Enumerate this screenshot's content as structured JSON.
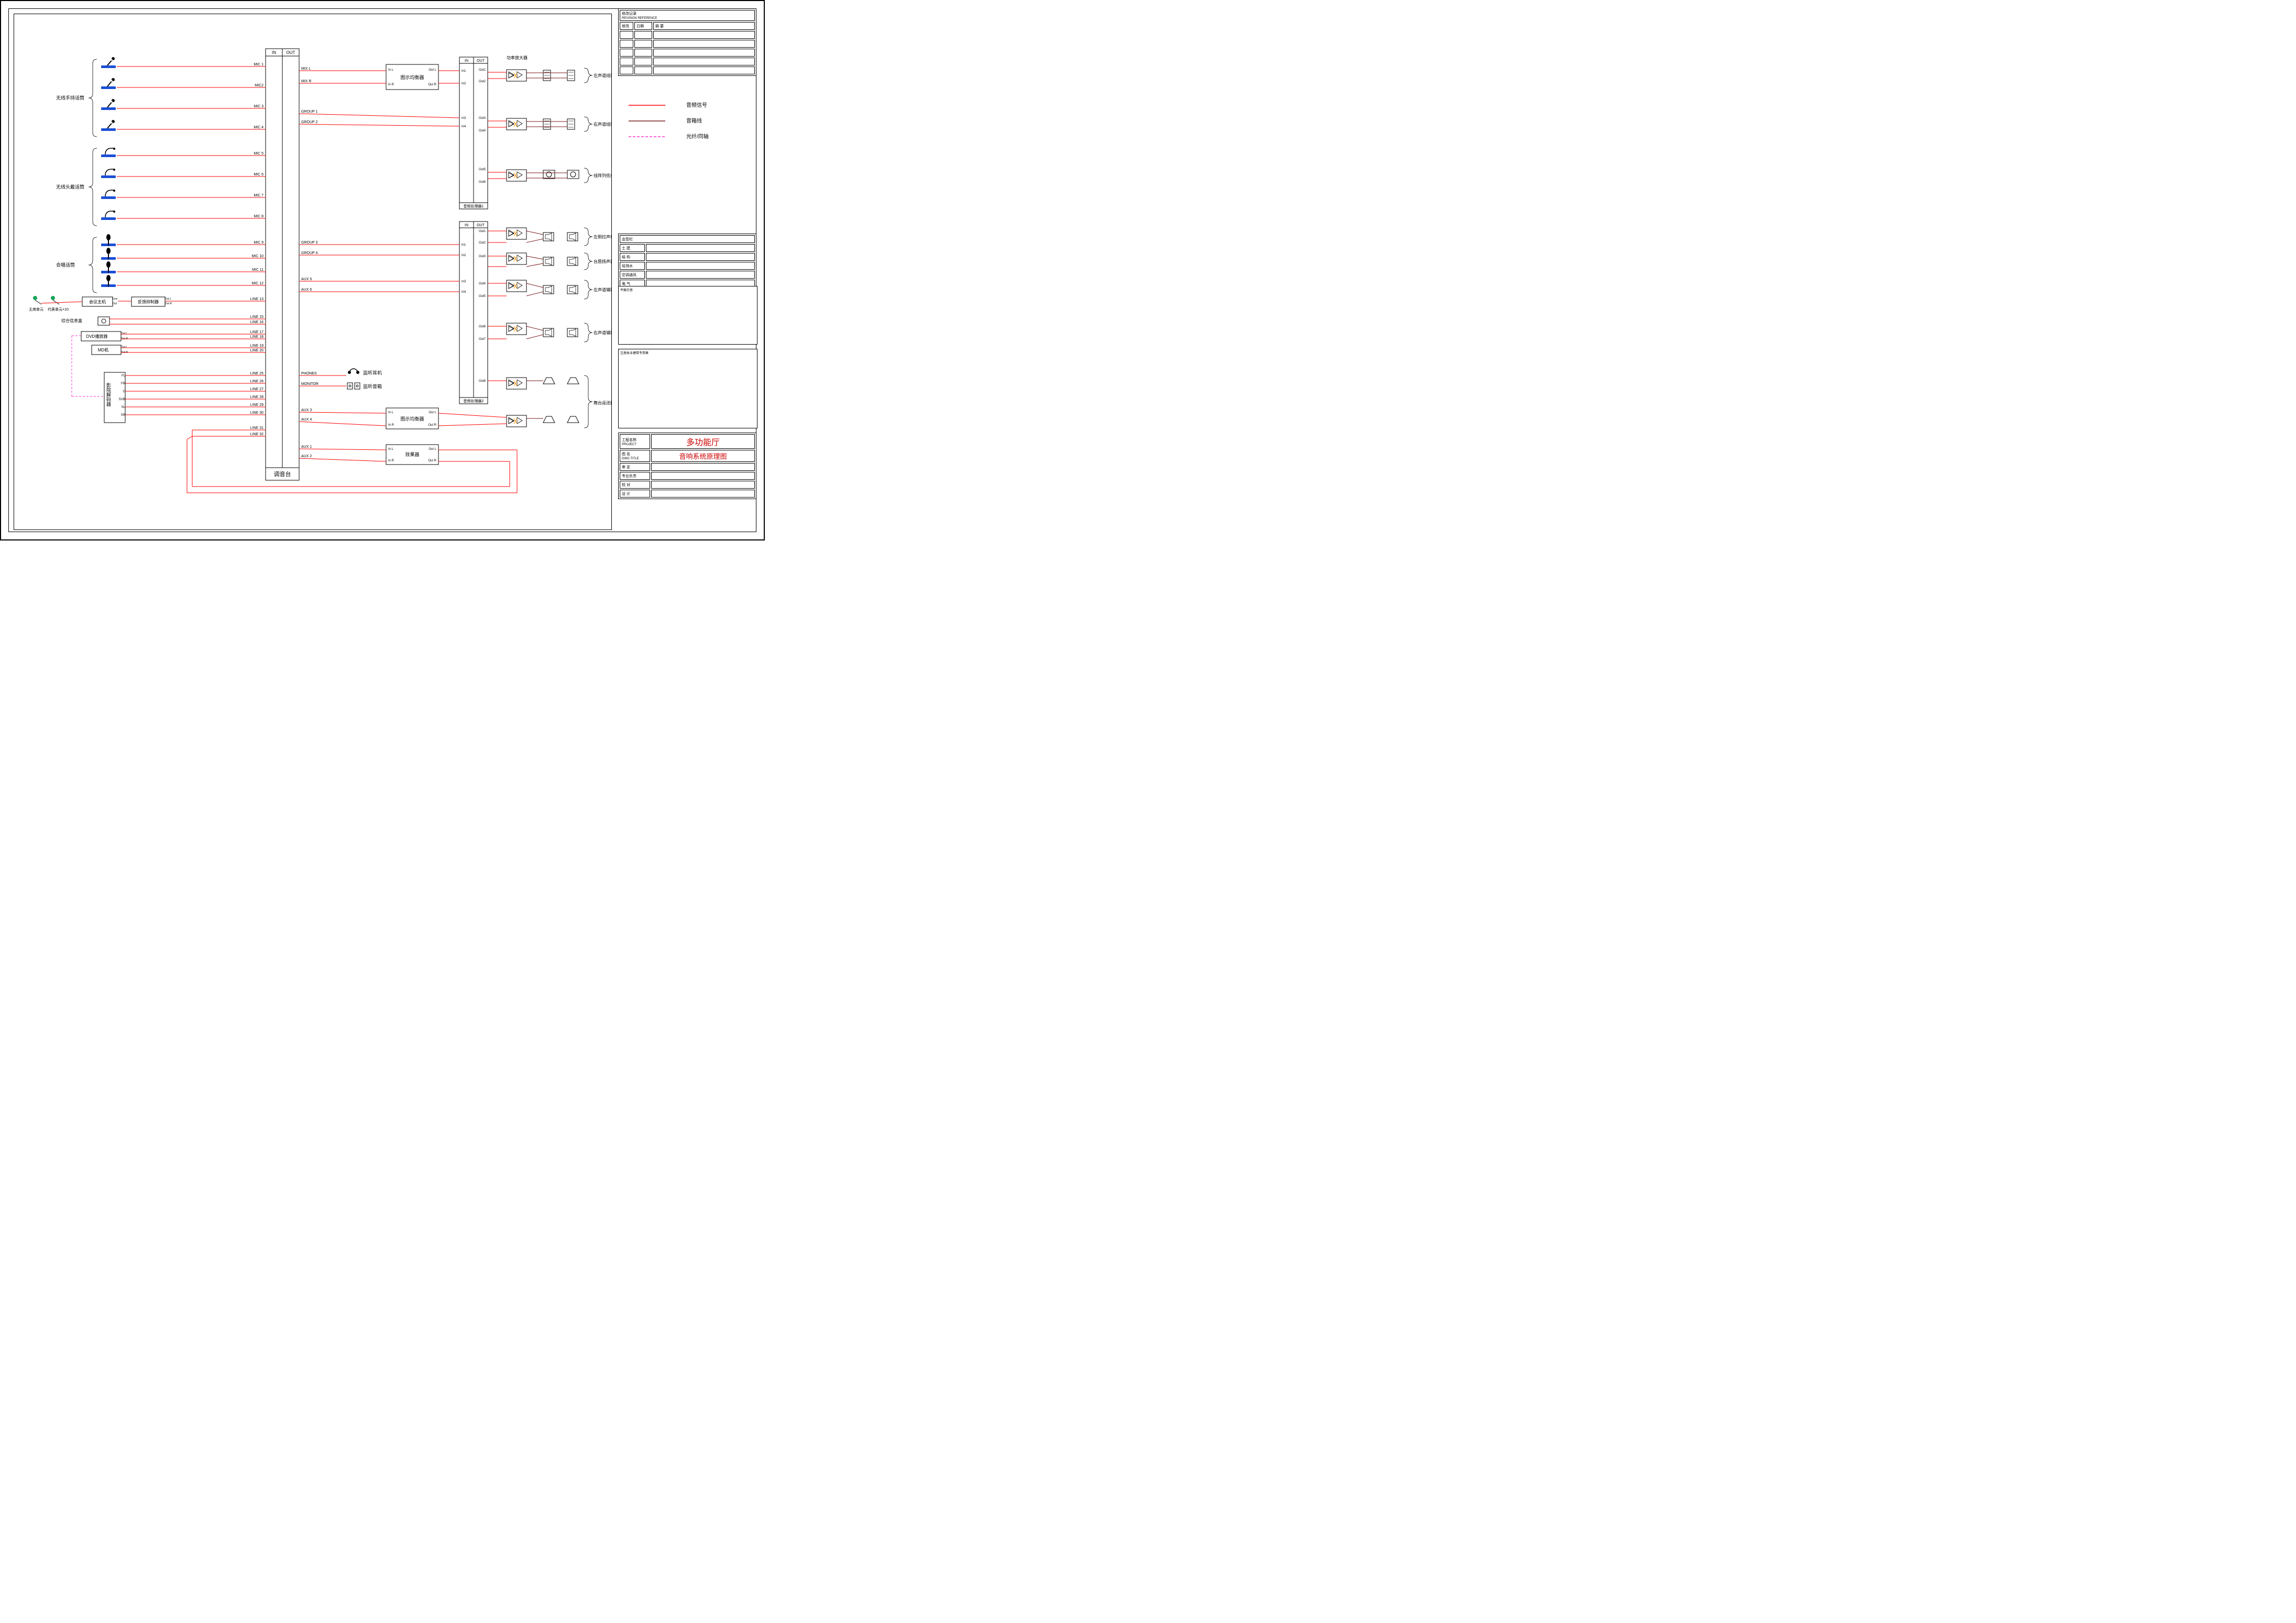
{
  "colors": {
    "signal": "#ff0000",
    "speaker": "#7a1a1a",
    "optical": "#ff33cc",
    "frame": "#000000",
    "iconBlue": "#1a4fd6",
    "iconGreen": "#18a558",
    "ampInternal": "#ff9900"
  },
  "legend": {
    "signal": "音频信号",
    "speaker": "音箱线",
    "optical": "光纤/同轴"
  },
  "sources": {
    "group1": {
      "label": "无线手持话筒",
      "items": [
        {
          "ch": "MIC 1"
        },
        {
          "ch": "MIC2"
        },
        {
          "ch": "MIC 3"
        },
        {
          "ch": "MIC 4"
        }
      ]
    },
    "group2": {
      "label": "无线头戴话筒",
      "items": [
        {
          "ch": "MIC 5"
        },
        {
          "ch": "MIC 6"
        },
        {
          "ch": "MIC 7"
        },
        {
          "ch": "MIC 8"
        }
      ]
    },
    "group3": {
      "label": "合唱话筒",
      "items": [
        {
          "ch": "MIC 9"
        },
        {
          "ch": "MIC 10"
        },
        {
          "ch": "MIC 11"
        },
        {
          "ch": "MIC 12"
        }
      ]
    },
    "conf": {
      "host": "会议主机",
      "feedback": "反馈抑制器",
      "unitMain": "主席单元",
      "unitRep": "代表单元×10",
      "ch": "LINE 13"
    },
    "infoBox": {
      "label": "综合信息盒",
      "ch1": "LINE 15",
      "ch2": "LINE 16"
    },
    "dvd": {
      "label": "DVD播放器",
      "ch1": "LINE 17",
      "ch2": "LINE 18"
    },
    "md": {
      "label": "MD机",
      "ch1": "LINE 19",
      "ch2": "LINE 20"
    },
    "decoder": {
      "label": "影院解码器",
      "outs": [
        "FL",
        "FR",
        "C",
        "SUB",
        "SL",
        "SR"
      ],
      "chs": [
        "LINE 25",
        "LINE 26",
        "LINE 27",
        "LINE 28",
        "LINE 29",
        "LINE 30"
      ]
    },
    "effect": {
      "inCh": [
        "LINE 31",
        "LINE 32"
      ]
    }
  },
  "mixer": {
    "label": "调音台",
    "inHeader": "IN",
    "outHeader": "OUT",
    "outs": {
      "mixL": "MIX L",
      "mixR": "MIX R",
      "g1": "GROUP 1",
      "g2": "GROUP 2",
      "g3": "GROUP 3",
      "g4": "GROUP 4",
      "aux1": "AUX 1",
      "aux2": "AUX 2",
      "aux3": "AUX 3",
      "aux4": "AUX 4",
      "aux5": "AUX 5",
      "aux6": "AUX 6",
      "phones": "PHONES",
      "monitor": "MONITOR"
    }
  },
  "eq": {
    "label": "图示均衡器",
    "inL": "In L",
    "inR": "In R",
    "outL": "Out L",
    "outR": "Out R"
  },
  "effectUnit": {
    "label": "效果器",
    "inL": "In L",
    "inR": "In R",
    "outL": "Out L",
    "outR": "Out R"
  },
  "proc1": {
    "label": "音频处理器1",
    "in": "IN",
    "out": "OUT",
    "ins": [
      "In1",
      "In2",
      "In3",
      "In4"
    ],
    "outs": [
      "Out1",
      "Out2",
      "Out3",
      "Out4",
      "Out5",
      "Out6"
    ]
  },
  "proc2": {
    "label": "音频处理器2",
    "in": "IN",
    "out": "OUT",
    "ins": [
      "In1",
      "In2",
      "In3",
      "In4"
    ],
    "outs": [
      "Out1",
      "Out2",
      "Out3",
      "Out4",
      "Out5",
      "Out6",
      "Out7",
      "Out8"
    ]
  },
  "amp": {
    "label": "功率放大器"
  },
  "monitor": {
    "phones": "监听耳机",
    "speaker": "监听音箱"
  },
  "speakerGroups": {
    "leftLine": "左声道线阵扬声器",
    "rightLine": "右声道线阵扬声器",
    "lineSub": "线阵列低频扬声器",
    "leftFill": "左侧拉声相扬声器",
    "centerFill": "台唇扬声器",
    "leftAux": "左声道辅助扬声器",
    "rightAux": "右声道辅助扬声器",
    "stageMon": "舞台返送扬声器"
  },
  "titleBlock": {
    "revHeader": "修改记录",
    "revHeaderEn": "REVISION REFERENCE",
    "revCols": [
      "修改",
      "日期",
      "摘 要"
    ],
    "revColsEn": [
      "REV.",
      "DATE",
      "DESCRIPTION"
    ],
    "sigHeader": "会签栏",
    "sigRows": [
      "土 建",
      "结 构",
      "给排水",
      "空调通风",
      "电 气"
    ],
    "keyplan": "平面示意",
    "keyplanEn": "KEY PLAN",
    "stamp": "注册执业建筑专用章",
    "stampEn": "STAMP OF ARCHITECTURAL DESIGN",
    "projLabel": "工程名称",
    "projLabelEn": "PROJECT",
    "proj": "多功能厅",
    "dwgLabel": "图 名",
    "dwgLabelEn": "DWG.TITLE",
    "dwg": "音响系统原理图",
    "approver": "审 定",
    "approverEn": "APPROVED BY",
    "spec": "专业负责",
    "specEn": "CHIEF",
    "checker": "校 对",
    "checkerEn": "CHECKED BY",
    "designer": "设 计",
    "designerEn": "DESIGNED BY"
  },
  "layout": {
    "mixerX": 480,
    "mixerW": 64,
    "mixerTop": 66,
    "mixerBot": 890,
    "srcX": 210,
    "micSpacing": 40,
    "eqX": 710,
    "eqW": 100,
    "procX": 850,
    "procW": 54,
    "ampX": 940,
    "spkX": 1010,
    "spkX2": 1060
  }
}
